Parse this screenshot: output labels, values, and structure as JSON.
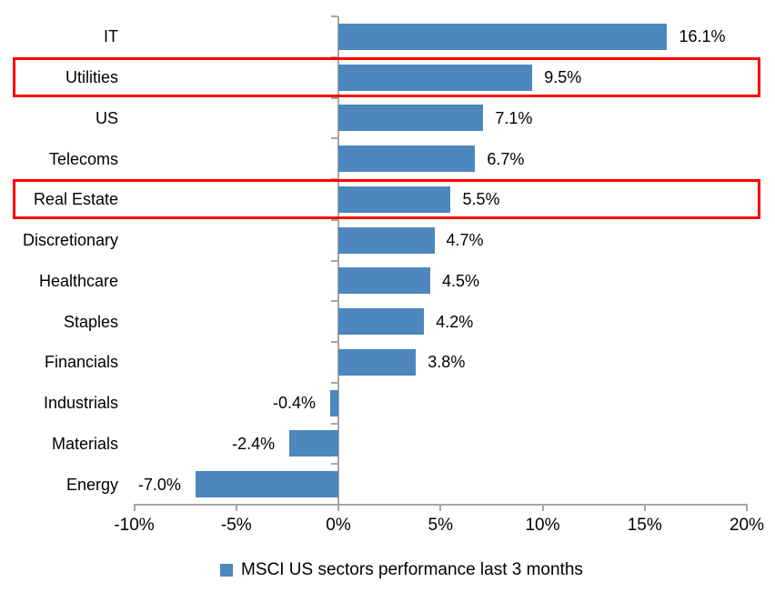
{
  "chart_data": {
    "type": "bar",
    "orientation": "horizontal",
    "categories": [
      "IT",
      "Utilities",
      "US",
      "Telecoms",
      "Real Estate",
      "Discretionary",
      "Healthcare",
      "Staples",
      "Financials",
      "Industrials",
      "Materials",
      "Energy"
    ],
    "values": [
      16.1,
      9.5,
      7.1,
      6.7,
      5.5,
      4.7,
      4.5,
      4.2,
      3.8,
      -0.4,
      -2.4,
      -7.0
    ],
    "value_labels": [
      "16.1%",
      "9.5%",
      "7.1%",
      "6.7%",
      "5.5%",
      "4.7%",
      "4.5%",
      "4.2%",
      "3.8%",
      "-0.4%",
      "-2.4%",
      "-7.0%"
    ],
    "highlighted_categories": [
      "Utilities",
      "Real Estate"
    ],
    "x_range": [
      -10,
      20
    ],
    "x_tick_values": [
      -10,
      -5,
      0,
      5,
      10,
      15,
      20
    ],
    "x_tick_labels": [
      "-10%",
      "-5%",
      "0%",
      "5%",
      "10%",
      "15%",
      "20%"
    ],
    "grid": "off",
    "legend": {
      "label": "MSCI US sectors performance last 3 months",
      "position": "bottom"
    },
    "colors": {
      "bar": "#4d87be",
      "highlight_box": "#ff0000",
      "axis": "#a6a6a6",
      "text": "#000000"
    }
  }
}
